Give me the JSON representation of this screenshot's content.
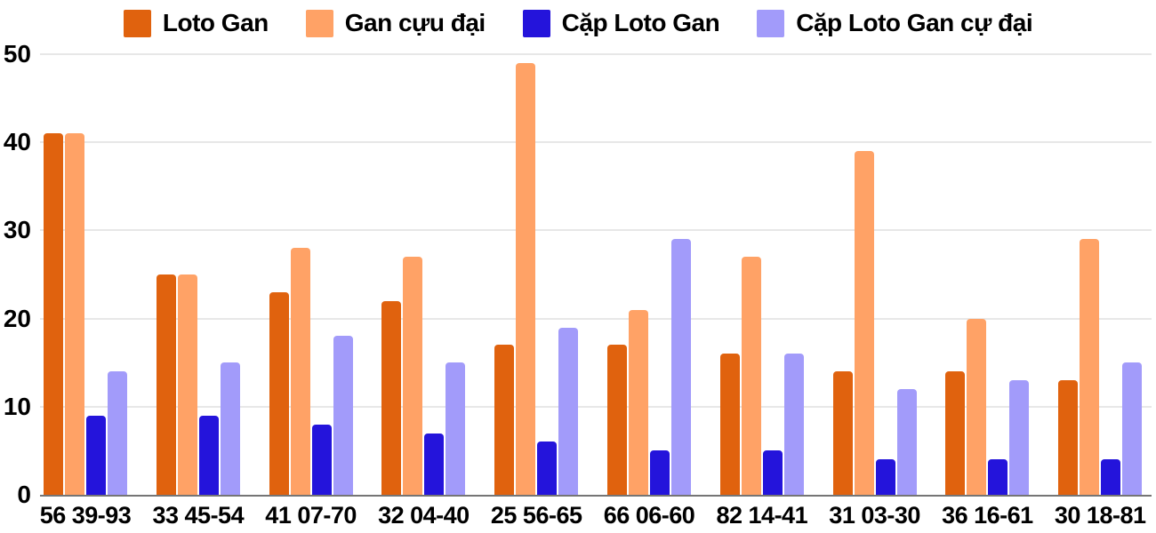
{
  "chart_data": {
    "type": "bar",
    "title": "",
    "categories": [
      "56 39-93",
      "33 45-54",
      "41 07-70",
      "32 04-40",
      "25 56-65",
      "66 06-60",
      "82 14-41",
      "31 03-30",
      "36 16-61",
      "30 18-81"
    ],
    "series": [
      {
        "name": "Loto Gan",
        "color": "#E0620E",
        "values": [
          41,
          25,
          23,
          22,
          17,
          17,
          16,
          14,
          14,
          13
        ]
      },
      {
        "name": "Gan cựu đại",
        "color": "#FFA266",
        "values": [
          41,
          25,
          28,
          27,
          49,
          21,
          27,
          39,
          20,
          29
        ]
      },
      {
        "name": "Cặp Loto Gan",
        "color": "#2414DB",
        "values": [
          9,
          9,
          8,
          7,
          6,
          5,
          5,
          4,
          4,
          4
        ]
      },
      {
        "name": "Cặp Loto Gan cự đại",
        "color": "#A29BFA",
        "values": [
          14,
          15,
          18,
          15,
          19,
          29,
          16,
          12,
          13,
          15
        ]
      }
    ],
    "xlabel": "",
    "ylabel": "",
    "ylim": [
      0,
      50
    ],
    "yticks": [
      0,
      10,
      20,
      30,
      40,
      50
    ],
    "grid": true,
    "legend_position": "top"
  },
  "colors": {
    "background": "#FFFFFF",
    "gridline": "#E7E7E7",
    "axis_line": "#757575",
    "text": "#000000"
  }
}
